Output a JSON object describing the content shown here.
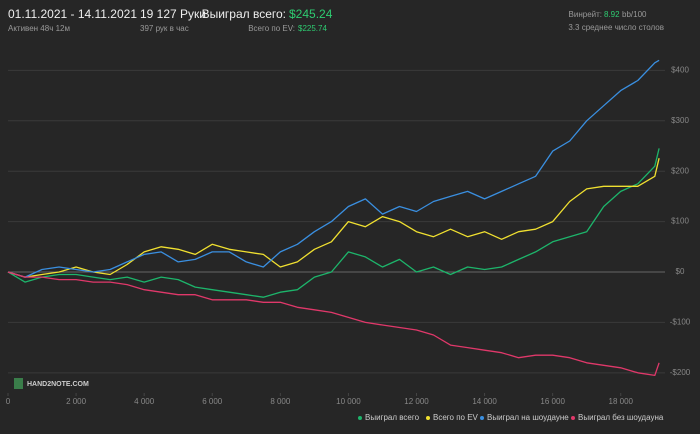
{
  "header": {
    "date_range": "01.11.2021 - 14.11.2021",
    "active": "Активен 48ч 12м",
    "hands": "19 127 Руки",
    "hands_per_hour": "397 рук в час",
    "won_label": "Выиграл всего:",
    "won_value": "$245.24",
    "ev_label": "Всего по EV:",
    "ev_value": "$225.74",
    "winrate_label": "Винрейт:",
    "winrate_value": "8.92",
    "winrate_unit": "bb/100",
    "tables": "3.3 среднее число столов"
  },
  "logo": "HAND2NOTE.COM",
  "chart_data": {
    "type": "line",
    "x": [
      0,
      500,
      1000,
      1500,
      2000,
      2500,
      3000,
      3500,
      4000,
      4500,
      5000,
      5500,
      6000,
      6500,
      7000,
      7500,
      8000,
      8500,
      9000,
      9500,
      10000,
      10500,
      11000,
      11500,
      12000,
      12500,
      13000,
      13500,
      14000,
      14500,
      15000,
      15500,
      16000,
      16500,
      17000,
      17500,
      18000,
      18500,
      19000,
      19127
    ],
    "series": [
      {
        "name": "Выиграл всего",
        "color": "#1db56b",
        "values": [
          0,
          -20,
          -10,
          -5,
          -5,
          -10,
          -15,
          -10,
          -20,
          -10,
          -15,
          -30,
          -35,
          -40,
          -45,
          -50,
          -40,
          -35,
          -10,
          0,
          40,
          30,
          10,
          25,
          0,
          10,
          -5,
          10,
          5,
          10,
          25,
          40,
          60,
          70,
          80,
          130,
          160,
          175,
          210,
          245.24
        ]
      },
      {
        "name": "Всего по EV",
        "color": "#f0e030",
        "values": [
          0,
          -10,
          -5,
          0,
          10,
          0,
          -5,
          15,
          40,
          50,
          45,
          35,
          55,
          45,
          40,
          35,
          10,
          20,
          45,
          60,
          100,
          90,
          110,
          100,
          80,
          70,
          85,
          70,
          80,
          65,
          80,
          85,
          100,
          140,
          165,
          170,
          170,
          170,
          190,
          225.74
        ]
      },
      {
        "name": "Выиграл на шоудауне",
        "color": "#3a8fe0",
        "values": [
          0,
          -10,
          5,
          10,
          5,
          0,
          5,
          20,
          35,
          40,
          20,
          25,
          40,
          40,
          20,
          10,
          40,
          55,
          80,
          100,
          130,
          145,
          115,
          130,
          120,
          140,
          150,
          160,
          145,
          160,
          175,
          190,
          240,
          260,
          300,
          330,
          360,
          380,
          415,
          420
        ]
      },
      {
        "name": "Выиграл без шоудауна",
        "color": "#e0386a",
        "values": [
          0,
          -10,
          -10,
          -15,
          -15,
          -20,
          -20,
          -25,
          -35,
          -40,
          -45,
          -45,
          -55,
          -55,
          -55,
          -60,
          -60,
          -70,
          -75,
          -80,
          -90,
          -100,
          -105,
          -110,
          -115,
          -125,
          -145,
          -150,
          -155,
          -160,
          -170,
          -165,
          -165,
          -170,
          -180,
          -185,
          -190,
          -200,
          -205,
          -180
        ]
      }
    ],
    "xlim": [
      0,
      19300
    ],
    "xticks": [
      0,
      {
        "value": 2000,
        "label": "2 000"
      },
      {
        "value": 4000,
        "label": "4 000"
      },
      {
        "value": 6000,
        "label": "6 000"
      },
      {
        "value": 8000,
        "label": "8 000"
      },
      {
        "value": 10000,
        "label": "10 000"
      },
      {
        "value": 12000,
        "label": "12 000"
      },
      {
        "value": 14000,
        "label": "14 000"
      },
      {
        "value": 16000,
        "label": "16 000"
      },
      {
        "value": 18000,
        "label": "18 000"
      }
    ],
    "ylim": [
      -240,
      500
    ],
    "yticks": [
      {
        "value": -200,
        "label": "-$200"
      },
      {
        "value": -100,
        "label": "-$100"
      },
      {
        "value": 0,
        "label": "$0"
      },
      {
        "value": 100,
        "label": "$100"
      },
      {
        "value": 200,
        "label": "$200"
      },
      {
        "value": 300,
        "label": "$300"
      },
      {
        "value": 400,
        "label": "$400"
      }
    ],
    "grid": true
  }
}
